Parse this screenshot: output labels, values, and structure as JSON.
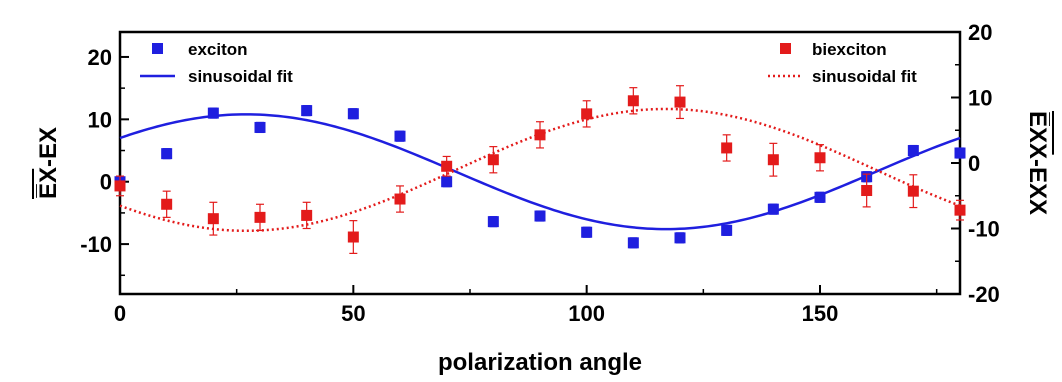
{
  "chart_data": {
    "type": "scatter",
    "xlabel": "polarization angle",
    "ylabel_left": "E̅X-EX",
    "ylabel_right": "E̅XX-EXX",
    "xlim": [
      0,
      180
    ],
    "ylim_left": [
      -18,
      24
    ],
    "ylim_right": [
      -20,
      20
    ],
    "x_ticks": [
      0,
      50,
      100,
      150
    ],
    "y_ticks_left": [
      -10,
      0,
      10,
      20
    ],
    "y_ticks_right": [
      -20,
      -10,
      0,
      10,
      20
    ],
    "grid": false,
    "legend": [
      {
        "label": "exciton",
        "marker": "square",
        "color": "#1f1fdf",
        "position": "top-left"
      },
      {
        "label": "sinusoidal fit",
        "line": "solid",
        "color": "#1f1fdf",
        "position": "top-left"
      },
      {
        "label": "biexciton",
        "marker": "square",
        "color": "#e31b1b",
        "position": "top-right"
      },
      {
        "label": "sinusoidal fit",
        "line": "dotted",
        "color": "#e31b1b",
        "position": "top-right"
      }
    ],
    "series": [
      {
        "name": "exciton",
        "axis": "left",
        "color": "#1f1fdf",
        "marker": "square",
        "x": [
          0,
          10,
          20,
          30,
          40,
          50,
          60,
          70,
          80,
          90,
          100,
          110,
          120,
          130,
          140,
          150,
          160,
          170,
          180
        ],
        "y": [
          0,
          4.5,
          11,
          8.7,
          11.4,
          10.9,
          7.3,
          0,
          -6.4,
          -5.5,
          -8.1,
          -9.8,
          -9.0,
          -7.8,
          -4.4,
          -2.5,
          0.8,
          5.0,
          4.6
        ],
        "err": [
          0.8,
          0.8,
          0.8,
          0.8,
          0.8,
          0.8,
          0.8,
          0.8,
          0.8,
          0.8,
          0.8,
          0.8,
          0.8,
          0.8,
          0.8,
          0.8,
          0.8,
          0.8,
          0.8
        ]
      },
      {
        "name": "sinusoidal fit",
        "axis": "left",
        "color": "#1f1fdf",
        "line": "solid",
        "fit": {
          "offset": 1.6,
          "amplitude": 9.2,
          "peak_angle": 27
        }
      },
      {
        "name": "biexciton",
        "axis": "right",
        "color": "#e31b1b",
        "marker": "square",
        "x": [
          0,
          10,
          20,
          30,
          40,
          50,
          60,
          70,
          80,
          90,
          100,
          110,
          120,
          130,
          140,
          150,
          160,
          170,
          180
        ],
        "y": [
          -3.5,
          -6.3,
          -8.5,
          -8.3,
          -8.0,
          -11.3,
          -5.5,
          -0.5,
          0.5,
          4.3,
          7.5,
          9.5,
          9.3,
          2.3,
          0.5,
          0.8,
          -4.2,
          -4.3,
          -7.2
        ],
        "err": [
          1.5,
          2.0,
          2.5,
          2.0,
          2.0,
          2.5,
          2.0,
          1.5,
          2.0,
          2.0,
          2.0,
          2.0,
          2.5,
          2.0,
          2.5,
          2.0,
          2.5,
          2.5,
          1.5
        ]
      },
      {
        "name": "sinusoidal fit",
        "axis": "right",
        "color": "#e31b1b",
        "line": "dotted",
        "fit": {
          "offset": -1.05,
          "amplitude": 9.3,
          "peak_angle": 117
        }
      }
    ]
  }
}
